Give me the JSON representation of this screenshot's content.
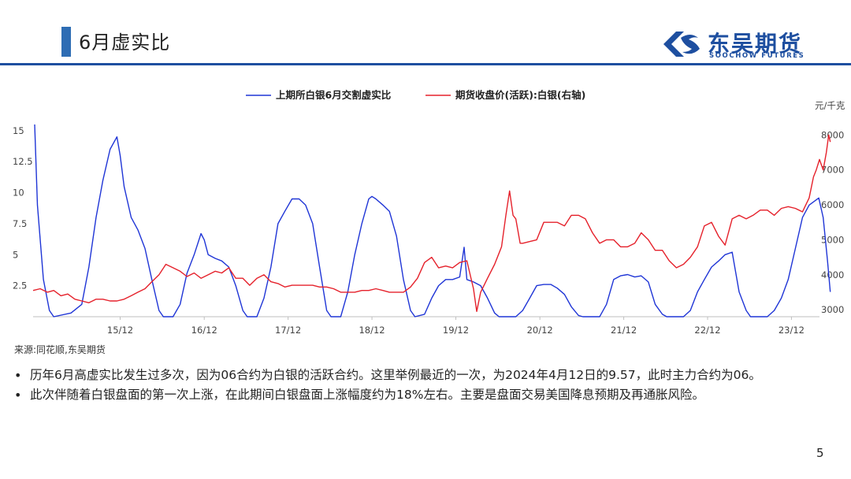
{
  "slide": {
    "title": "6月虚实比",
    "page_number": "5"
  },
  "logo": {
    "name_cn": "东吴期货",
    "name_en": "SOOCHOW FUTURES",
    "icon": "soochow-logo-icon"
  },
  "colors": {
    "accent": "#1e4fa0",
    "title_bar": "#2e6db4",
    "series_ratio": "#1f35d6",
    "series_price": "#e5212b"
  },
  "chart_data": {
    "type": "line",
    "x_tick_labels": [
      "15/12",
      "16/12",
      "17/12",
      "18/12",
      "19/12",
      "20/12",
      "21/12",
      "22/12",
      "23/12"
    ],
    "x_range": [
      "2014-12-01",
      "2024-04-15"
    ],
    "y_left": {
      "ticks": [
        "2.5",
        "5",
        "7.5",
        "10",
        "12.5",
        "15"
      ],
      "ylim": [
        0,
        15.5
      ]
    },
    "y_right": {
      "ticks": [
        "3000",
        "4000",
        "5000",
        "6000",
        "7000",
        "8000"
      ],
      "ylim": [
        2800,
        8300
      ],
      "unit_label": "元/千克"
    },
    "legend_position": "top-center",
    "grid": false,
    "series": [
      {
        "name": "上期所白银6月交割虚实比",
        "axis": "left",
        "points": [
          [
            "2014-12-08",
            15.5
          ],
          [
            "2014-12-20",
            9.0
          ],
          [
            "2015-01-15",
            3.0
          ],
          [
            "2015-02-10",
            0.5
          ],
          [
            "2015-03-01",
            0.0
          ],
          [
            "2015-05-15",
            0.3
          ],
          [
            "2015-07-01",
            1.0
          ],
          [
            "2015-08-01",
            4.0
          ],
          [
            "2015-09-01",
            8.0
          ],
          [
            "2015-10-01",
            11.0
          ],
          [
            "2015-11-01",
            13.5
          ],
          [
            "2015-12-01",
            14.5
          ],
          [
            "2015-12-15",
            13.0
          ],
          [
            "2016-01-01",
            10.5
          ],
          [
            "2016-02-01",
            8.0
          ],
          [
            "2016-03-01",
            7.0
          ],
          [
            "2016-04-01",
            5.5
          ],
          [
            "2016-05-01",
            3.0
          ],
          [
            "2016-06-01",
            0.5
          ],
          [
            "2016-06-20",
            0.0
          ],
          [
            "2016-08-01",
            0.0
          ],
          [
            "2016-09-01",
            1.0
          ],
          [
            "2016-10-01",
            3.5
          ],
          [
            "2016-11-01",
            5.0
          ],
          [
            "2016-12-01",
            6.7
          ],
          [
            "2016-12-15",
            6.2
          ],
          [
            "2017-01-01",
            5.0
          ],
          [
            "2017-02-01",
            4.7
          ],
          [
            "2017-03-01",
            4.5
          ],
          [
            "2017-04-01",
            4.0
          ],
          [
            "2017-05-01",
            2.5
          ],
          [
            "2017-06-01",
            0.5
          ],
          [
            "2017-06-20",
            0.0
          ],
          [
            "2017-08-01",
            0.0
          ],
          [
            "2017-09-01",
            1.5
          ],
          [
            "2017-10-01",
            4.0
          ],
          [
            "2017-11-01",
            7.5
          ],
          [
            "2017-12-01",
            8.5
          ],
          [
            "2018-01-01",
            9.5
          ],
          [
            "2018-02-01",
            9.5
          ],
          [
            "2018-03-01",
            9.0
          ],
          [
            "2018-04-01",
            7.5
          ],
          [
            "2018-05-01",
            4.0
          ],
          [
            "2018-06-01",
            0.5
          ],
          [
            "2018-06-20",
            0.0
          ],
          [
            "2018-08-01",
            0.0
          ],
          [
            "2018-09-01",
            2.0
          ],
          [
            "2018-10-01",
            5.0
          ],
          [
            "2018-11-01",
            7.5
          ],
          [
            "2018-12-01",
            9.5
          ],
          [
            "2018-12-15",
            9.7
          ],
          [
            "2019-01-01",
            9.5
          ],
          [
            "2019-02-01",
            9.0
          ],
          [
            "2019-03-01",
            8.5
          ],
          [
            "2019-04-01",
            6.5
          ],
          [
            "2019-05-01",
            3.0
          ],
          [
            "2019-06-01",
            0.5
          ],
          [
            "2019-06-20",
            0.0
          ],
          [
            "2019-08-01",
            0.2
          ],
          [
            "2019-09-01",
            1.5
          ],
          [
            "2019-10-01",
            2.5
          ],
          [
            "2019-11-01",
            3.0
          ],
          [
            "2019-12-01",
            3.0
          ],
          [
            "2020-01-01",
            3.2
          ],
          [
            "2020-01-20",
            5.6
          ],
          [
            "2020-02-01",
            3.0
          ],
          [
            "2020-03-01",
            2.8
          ],
          [
            "2020-04-01",
            2.5
          ],
          [
            "2020-05-01",
            1.5
          ],
          [
            "2020-06-01",
            0.3
          ],
          [
            "2020-06-20",
            0.0
          ],
          [
            "2020-09-01",
            0.0
          ],
          [
            "2020-10-01",
            0.5
          ],
          [
            "2020-11-01",
            1.5
          ],
          [
            "2020-12-01",
            2.5
          ],
          [
            "2021-01-01",
            2.6
          ],
          [
            "2021-02-01",
            2.6
          ],
          [
            "2021-03-01",
            2.3
          ],
          [
            "2021-04-01",
            1.8
          ],
          [
            "2021-05-01",
            0.8
          ],
          [
            "2021-06-01",
            0.1
          ],
          [
            "2021-06-20",
            0.0
          ],
          [
            "2021-09-01",
            0.0
          ],
          [
            "2021-10-01",
            1.0
          ],
          [
            "2021-11-01",
            3.0
          ],
          [
            "2021-12-01",
            3.3
          ],
          [
            "2022-01-01",
            3.4
          ],
          [
            "2022-02-01",
            3.2
          ],
          [
            "2022-03-01",
            3.3
          ],
          [
            "2022-04-01",
            2.8
          ],
          [
            "2022-05-01",
            1.0
          ],
          [
            "2022-06-01",
            0.2
          ],
          [
            "2022-06-20",
            0.0
          ],
          [
            "2022-09-01",
            0.0
          ],
          [
            "2022-10-01",
            0.5
          ],
          [
            "2022-11-01",
            2.0
          ],
          [
            "2022-12-01",
            3.0
          ],
          [
            "2023-01-01",
            4.0
          ],
          [
            "2023-02-01",
            4.5
          ],
          [
            "2023-03-01",
            5.0
          ],
          [
            "2023-04-01",
            5.2
          ],
          [
            "2023-05-01",
            2.0
          ],
          [
            "2023-06-01",
            0.5
          ],
          [
            "2023-06-20",
            0.0
          ],
          [
            "2023-09-01",
            0.0
          ],
          [
            "2023-10-01",
            0.5
          ],
          [
            "2023-11-01",
            1.5
          ],
          [
            "2023-12-01",
            3.0
          ],
          [
            "2024-01-01",
            5.5
          ],
          [
            "2024-02-01",
            8.0
          ],
          [
            "2024-03-01",
            9.0
          ],
          [
            "2024-04-12",
            9.57
          ],
          [
            "2024-05-01",
            8.0
          ],
          [
            "2024-05-20",
            4.5
          ],
          [
            "2024-06-01",
            2.0
          ]
        ]
      },
      {
        "name": "期货收盘价(活跃):白银(右轴)",
        "axis": "right",
        "points": [
          [
            "2014-12-01",
            3550
          ],
          [
            "2015-01-01",
            3600
          ],
          [
            "2015-02-01",
            3500
          ],
          [
            "2015-03-01",
            3550
          ],
          [
            "2015-04-01",
            3400
          ],
          [
            "2015-05-01",
            3450
          ],
          [
            "2015-06-01",
            3300
          ],
          [
            "2015-07-01",
            3250
          ],
          [
            "2015-08-01",
            3200
          ],
          [
            "2015-09-01",
            3300
          ],
          [
            "2015-10-01",
            3300
          ],
          [
            "2015-11-01",
            3250
          ],
          [
            "2015-12-01",
            3250
          ],
          [
            "2016-01-01",
            3300
          ],
          [
            "2016-02-01",
            3400
          ],
          [
            "2016-03-01",
            3500
          ],
          [
            "2016-04-01",
            3600
          ],
          [
            "2016-05-01",
            3800
          ],
          [
            "2016-06-01",
            4000
          ],
          [
            "2016-07-01",
            4300
          ],
          [
            "2016-08-01",
            4200
          ],
          [
            "2016-09-01",
            4100
          ],
          [
            "2016-10-01",
            3950
          ],
          [
            "2016-11-01",
            4050
          ],
          [
            "2016-12-01",
            3900
          ],
          [
            "2017-01-01",
            4000
          ],
          [
            "2017-02-01",
            4100
          ],
          [
            "2017-03-01",
            4050
          ],
          [
            "2017-04-01",
            4200
          ],
          [
            "2017-05-01",
            3900
          ],
          [
            "2017-06-01",
            3900
          ],
          [
            "2017-07-01",
            3700
          ],
          [
            "2017-08-01",
            3900
          ],
          [
            "2017-09-01",
            4000
          ],
          [
            "2017-10-01",
            3800
          ],
          [
            "2017-11-01",
            3750
          ],
          [
            "2017-12-01",
            3650
          ],
          [
            "2018-01-01",
            3700
          ],
          [
            "2018-02-01",
            3700
          ],
          [
            "2018-03-01",
            3700
          ],
          [
            "2018-04-01",
            3700
          ],
          [
            "2018-05-01",
            3650
          ],
          [
            "2018-06-01",
            3650
          ],
          [
            "2018-07-01",
            3600
          ],
          [
            "2018-08-01",
            3500
          ],
          [
            "2018-09-01",
            3500
          ],
          [
            "2018-10-01",
            3500
          ],
          [
            "2018-11-01",
            3550
          ],
          [
            "2018-12-01",
            3550
          ],
          [
            "2019-01-01",
            3600
          ],
          [
            "2019-02-01",
            3550
          ],
          [
            "2019-03-01",
            3500
          ],
          [
            "2019-04-01",
            3500
          ],
          [
            "2019-05-01",
            3500
          ],
          [
            "2019-06-01",
            3650
          ],
          [
            "2019-07-01",
            3900
          ],
          [
            "2019-08-01",
            4350
          ],
          [
            "2019-09-01",
            4500
          ],
          [
            "2019-10-01",
            4200
          ],
          [
            "2019-11-01",
            4250
          ],
          [
            "2019-12-01",
            4200
          ],
          [
            "2020-01-01",
            4350
          ],
          [
            "2020-02-01",
            4400
          ],
          [
            "2020-03-01",
            3600
          ],
          [
            "2020-03-15",
            2950
          ],
          [
            "2020-04-01",
            3500
          ],
          [
            "2020-05-01",
            3900
          ],
          [
            "2020-06-01",
            4300
          ],
          [
            "2020-07-01",
            4800
          ],
          [
            "2020-07-20",
            5700
          ],
          [
            "2020-08-05",
            6400
          ],
          [
            "2020-08-20",
            5700
          ],
          [
            "2020-09-01",
            5600
          ],
          [
            "2020-09-20",
            4900
          ],
          [
            "2020-10-01",
            4900
          ],
          [
            "2020-11-01",
            4950
          ],
          [
            "2020-12-01",
            5000
          ],
          [
            "2021-01-01",
            5500
          ],
          [
            "2021-02-01",
            5500
          ],
          [
            "2021-03-01",
            5500
          ],
          [
            "2021-04-01",
            5400
          ],
          [
            "2021-05-01",
            5700
          ],
          [
            "2021-06-01",
            5700
          ],
          [
            "2021-07-01",
            5600
          ],
          [
            "2021-08-01",
            5200
          ],
          [
            "2021-09-01",
            4900
          ],
          [
            "2021-10-01",
            5000
          ],
          [
            "2021-11-01",
            5000
          ],
          [
            "2021-12-01",
            4800
          ],
          [
            "2022-01-01",
            4800
          ],
          [
            "2022-02-01",
            4900
          ],
          [
            "2022-03-01",
            5200
          ],
          [
            "2022-04-01",
            5000
          ],
          [
            "2022-05-01",
            4700
          ],
          [
            "2022-06-01",
            4700
          ],
          [
            "2022-07-01",
            4400
          ],
          [
            "2022-08-01",
            4200
          ],
          [
            "2022-09-01",
            4300
          ],
          [
            "2022-10-01",
            4500
          ],
          [
            "2022-11-01",
            4800
          ],
          [
            "2022-12-01",
            5400
          ],
          [
            "2023-01-01",
            5500
          ],
          [
            "2023-02-01",
            5100
          ],
          [
            "2023-03-01",
            4850
          ],
          [
            "2023-04-01",
            5600
          ],
          [
            "2023-05-01",
            5700
          ],
          [
            "2023-06-01",
            5600
          ],
          [
            "2023-07-01",
            5700
          ],
          [
            "2023-08-01",
            5850
          ],
          [
            "2023-09-01",
            5850
          ],
          [
            "2023-10-01",
            5700
          ],
          [
            "2023-11-01",
            5900
          ],
          [
            "2023-12-01",
            5950
          ],
          [
            "2024-01-01",
            5900
          ],
          [
            "2024-02-01",
            5800
          ],
          [
            "2024-03-01",
            6200
          ],
          [
            "2024-03-20",
            6800
          ],
          [
            "2024-04-01",
            7000
          ],
          [
            "2024-04-15",
            7300
          ],
          [
            "2024-05-01",
            7000
          ],
          [
            "2024-05-15",
            7500
          ],
          [
            "2024-05-25",
            8000
          ],
          [
            "2024-06-01",
            7800
          ]
        ]
      }
    ]
  },
  "footer": {
    "source": "来源:同花顺,东吴期货",
    "bullets": [
      "历年6月高虚实比发生过多次，因为06合约为白银的活跃合约。这里举例最近的一次，为2024年4月12日的9.57，此时主力合约为06。",
      "此次伴随着白银盘面的第一次上涨，在此期间白银盘面上涨幅度约为18%左右。主要是盘面交易美国降息预期及再通胀风险。"
    ]
  }
}
